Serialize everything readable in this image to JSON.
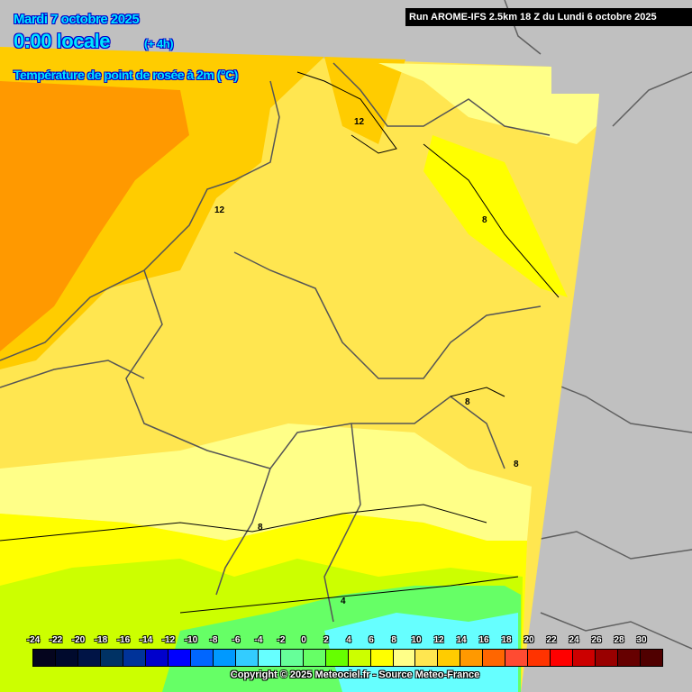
{
  "header": {
    "date": "Mardi 7 octobre 2025",
    "time": "0:00 locale",
    "lead": "(+ 4h)",
    "parameter": "Température de point de rosée à 2m (°C)",
    "run": "Run AROME-IFS 2.5km 18 Z du Lundi 6 octobre 2025"
  },
  "contour_labels": [
    "12",
    "12",
    "8",
    "8",
    "8",
    "8",
    "4"
  ],
  "legend": {
    "labels": [
      "-24",
      "-22",
      "-20",
      "-18",
      "-16",
      "-14",
      "-12",
      "-10",
      "-8",
      "-6",
      "-4",
      "-2",
      "0",
      "2",
      "4",
      "6",
      "8",
      "10",
      "12",
      "14",
      "16",
      "18",
      "20",
      "22",
      "24",
      "26",
      "28",
      "30"
    ],
    "colors": [
      "#05051e",
      "#000a2d",
      "#001446",
      "#003264",
      "#003399",
      "#0000cc",
      "#0000ff",
      "#0066ff",
      "#0099ff",
      "#33ccff",
      "#66ffff",
      "#66ff99",
      "#66ff66",
      "#66ff00",
      "#ccff00",
      "#ffff00",
      "#ffff88",
      "#ffe650",
      "#ffcc00",
      "#ff9900",
      "#ff6600",
      "#ff4b32",
      "#ff3300",
      "#ff0000",
      "#cc0000",
      "#990000",
      "#660000",
      "#500000"
    ]
  },
  "copyright": "Copyright © 2025 Meteociel.fr - Source Meteo-France",
  "colors": {
    "background": "#c0c0c0",
    "title": "#00e5ff"
  }
}
